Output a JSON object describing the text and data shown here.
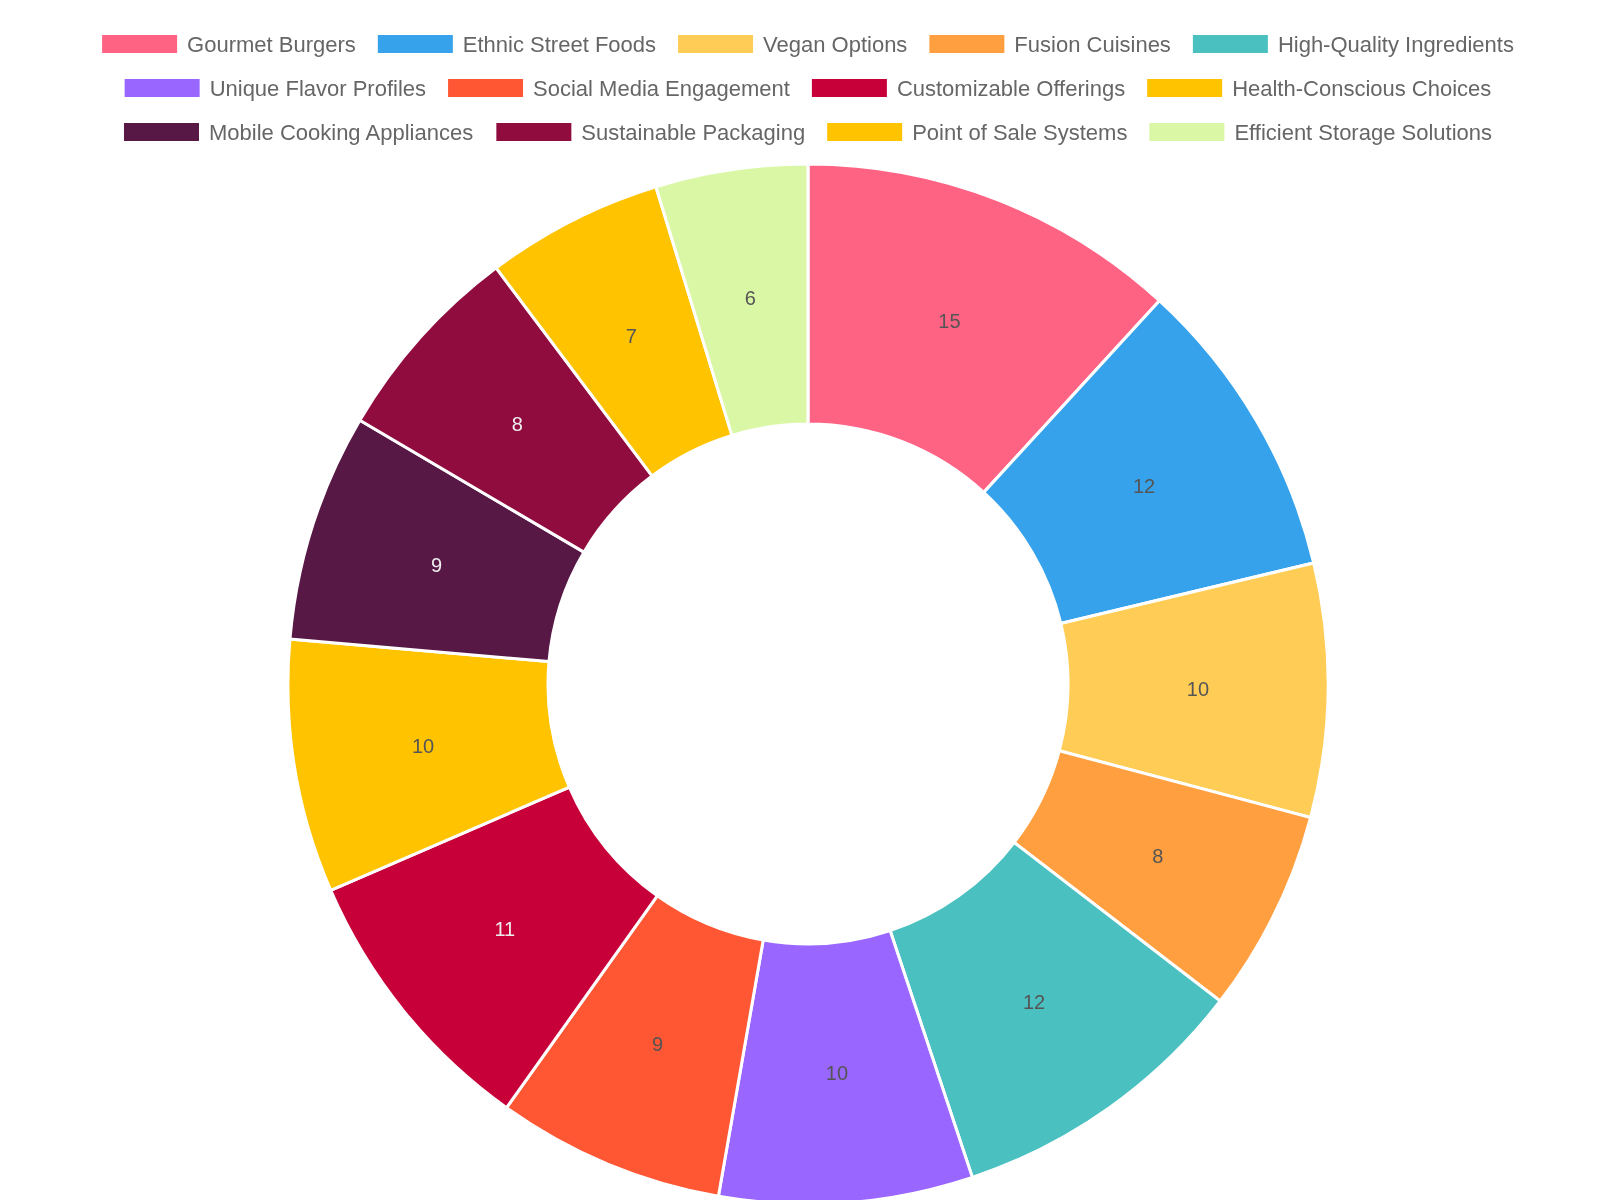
{
  "chart_data": {
    "type": "donut",
    "categories": [
      "Gourmet Burgers",
      "Ethnic Street Foods",
      "Vegan Options",
      "Fusion Cuisines",
      "High-Quality Ingredients",
      "Unique Flavor Profiles",
      "Social Media Engagement",
      "Customizable Offerings",
      "Health-Conscious Choices",
      "Mobile Cooking Appliances",
      "Sustainable Packaging",
      "Point of Sale Systems",
      "Efficient Storage Solutions"
    ],
    "values": [
      15,
      12,
      10,
      8,
      12,
      10,
      9,
      11,
      10,
      9,
      8,
      7,
      6
    ],
    "colors": [
      "#ff6384",
      "#36a2eb",
      "#ffcd56",
      "#ff9f40",
      "#4bc0c0",
      "#9966ff",
      "#ff5733",
      "#c70039",
      "#ffc300",
      "#581845",
      "#900c3f",
      "#ffc300",
      "#daf7a6"
    ],
    "data_labels": true,
    "legend": "top"
  }
}
